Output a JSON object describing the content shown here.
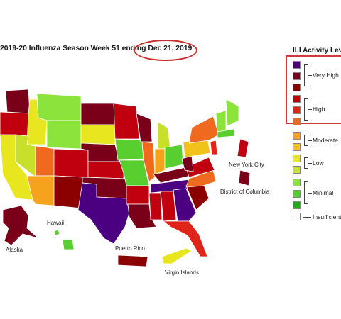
{
  "title": "2019-20 Influenza Season Week 51 ending",
  "date": "Dec 21, 2019",
  "legend": {
    "title": "ILI Activity Lev",
    "levels": [
      {
        "label": "Very High",
        "colors": [
          "#4b0082",
          "#7a0019",
          "#8b0000"
        ]
      },
      {
        "label": "High",
        "colors": [
          "#c0000f",
          "#e0241a",
          "#ef6a1e"
        ]
      },
      {
        "label": "Moderate",
        "colors": [
          "#f5a21c",
          "#f0c21a"
        ]
      },
      {
        "label": "Low",
        "colors": [
          "#e8e61e",
          "#c8e02a"
        ]
      },
      {
        "label": "Minimal",
        "colors": [
          "#8ce33b",
          "#58cf2e",
          "#1ea81e"
        ]
      },
      {
        "label": "Insufficient",
        "colors": [
          "#ffffff"
        ]
      }
    ]
  },
  "labels": {
    "nyc": "New York City",
    "dc": "District of Columbia",
    "hawaii": "Hawaii",
    "alaska": "Alaska",
    "pr": "Puerto Rico",
    "vi": "Virgin Islands"
  },
  "colors": {
    "very_high_purple": "#4b0082",
    "very_high": "#7a0019",
    "high": "#c0000f",
    "moderate": "#f5a21c",
    "low": "#e8e61e",
    "minimal": "#8ce33b",
    "circle": "#c9302c"
  }
}
